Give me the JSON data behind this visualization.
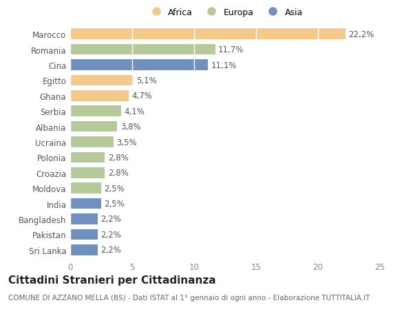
{
  "countries": [
    "Sri Lanka",
    "Pakistan",
    "Bangladesh",
    "India",
    "Moldova",
    "Croazia",
    "Polonia",
    "Ucraina",
    "Albania",
    "Serbia",
    "Ghana",
    "Egitto",
    "Cina",
    "Romania",
    "Marocco"
  ],
  "values": [
    2.2,
    2.2,
    2.2,
    2.5,
    2.5,
    2.8,
    2.8,
    3.5,
    3.8,
    4.1,
    4.7,
    5.1,
    11.1,
    11.7,
    22.2
  ],
  "labels": [
    "2,2%",
    "2,2%",
    "2,2%",
    "2,5%",
    "2,5%",
    "2,8%",
    "2,8%",
    "3,5%",
    "3,8%",
    "4,1%",
    "4,7%",
    "5,1%",
    "11,1%",
    "11,7%",
    "22,2%"
  ],
  "continents": [
    "Asia",
    "Asia",
    "Asia",
    "Asia",
    "Europa",
    "Europa",
    "Europa",
    "Europa",
    "Europa",
    "Europa",
    "Africa",
    "Africa",
    "Asia",
    "Europa",
    "Africa"
  ],
  "colors": {
    "Africa": "#F5C98A",
    "Europa": "#B5C99A",
    "Asia": "#7090C0"
  },
  "legend_labels": [
    "Africa",
    "Europa",
    "Asia"
  ],
  "legend_colors": [
    "#F5C98A",
    "#B5C99A",
    "#7090C0"
  ],
  "xlim": [
    0,
    25
  ],
  "xticks": [
    0,
    5,
    10,
    15,
    20,
    25
  ],
  "title": "Cittadini Stranieri per Cittadinanza",
  "subtitle": "COMUNE DI AZZANO MELLA (BS) - Dati ISTAT al 1° gennaio di ogni anno - Elaborazione TUTTITALIA.IT",
  "background_color": "#ffffff",
  "bar_height": 0.7,
  "label_fontsize": 8.5,
  "tick_fontsize": 8.5,
  "title_fontsize": 11,
  "subtitle_fontsize": 7.5
}
